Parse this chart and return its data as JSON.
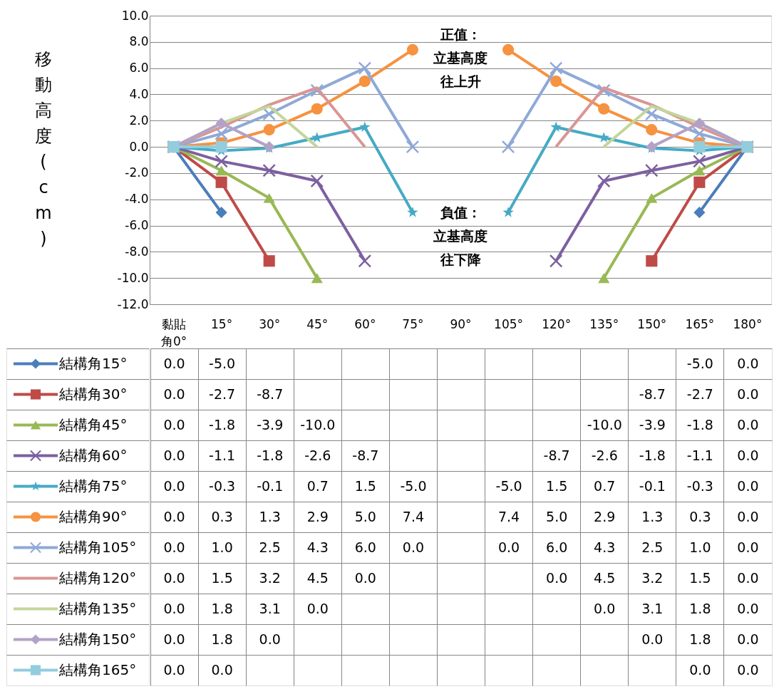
{
  "chart_data": {
    "type": "line",
    "ylabel": "移動高度(cm)",
    "categories": [
      "黏貼角0°",
      "15°",
      "30°",
      "45°",
      "60°",
      "75°",
      "90°",
      "105°",
      "120°",
      "135°",
      "150°",
      "165°",
      "180°"
    ],
    "ylim": [
      -12,
      10
    ],
    "yticks": [
      {
        "value": -12,
        "label": "-12.0"
      },
      {
        "value": -10,
        "label": "-10.0"
      },
      {
        "value": -8,
        "label": "-8.0"
      },
      {
        "value": -6,
        "label": "-6.0"
      },
      {
        "value": -4,
        "label": "-4.0"
      },
      {
        "value": -2,
        "label": "-2.0"
      },
      {
        "value": 0,
        "label": "0.0"
      },
      {
        "value": 2,
        "label": "2.0"
      },
      {
        "value": 4,
        "label": "4.0"
      },
      {
        "value": 6,
        "label": "6.0"
      },
      {
        "value": 8,
        "label": "8.0"
      },
      {
        "value": 10,
        "label": "10.0"
      }
    ],
    "grid": "y",
    "legend": "bottom",
    "annotations": [
      "正值：立基高度往上升",
      "負值：立基高度往下降"
    ],
    "series": [
      {
        "name": "結構角15°",
        "color": "#4a7ebb",
        "marker": "diamond",
        "values": [
          0.0,
          -5.0,
          null,
          null,
          null,
          null,
          null,
          null,
          null,
          null,
          null,
          -5.0,
          0.0
        ],
        "value_labels": [
          "0.0",
          "-5.0",
          null,
          null,
          null,
          null,
          null,
          null,
          null,
          null,
          null,
          "-5.0",
          "0.0"
        ]
      },
      {
        "name": "結構角30°",
        "color": "#be4b48",
        "marker": "square",
        "values": [
          0.0,
          -2.7,
          -8.7,
          null,
          null,
          null,
          null,
          null,
          null,
          null,
          -8.7,
          -2.7,
          0.0
        ],
        "value_labels": [
          "0.0",
          "-2.7",
          "-8.7",
          null,
          null,
          null,
          null,
          null,
          null,
          null,
          "-8.7",
          "-2.7",
          "0.0"
        ]
      },
      {
        "name": "結構角45°",
        "color": "#98b954",
        "marker": "triangle",
        "values": [
          0.0,
          -1.8,
          -3.9,
          -10.0,
          null,
          null,
          null,
          null,
          null,
          -10.0,
          -3.9,
          -1.8,
          0.0
        ],
        "value_labels": [
          "0.0",
          "-1.8",
          "-3.9",
          "-10.0",
          null,
          null,
          null,
          null,
          null,
          "-10.0",
          "-3.9",
          "-1.8",
          "0.0"
        ]
      },
      {
        "name": "結構角60°",
        "color": "#7d60a0",
        "marker": "cross",
        "values": [
          0.0,
          -1.1,
          -1.8,
          -2.6,
          -8.7,
          null,
          null,
          null,
          -8.7,
          -2.6,
          -1.8,
          -1.1,
          0.0
        ],
        "value_labels": [
          "0.0",
          "-1.1",
          "-1.8",
          "-2.6",
          "-8.7",
          null,
          null,
          null,
          "-8.7",
          "-2.6",
          "-1.8",
          "-1.1",
          "0.0"
        ]
      },
      {
        "name": "結構角75°",
        "color": "#46aac5",
        "marker": "star",
        "values": [
          0.0,
          -0.3,
          -0.1,
          0.7,
          1.5,
          -5.0,
          null,
          -5.0,
          1.5,
          0.7,
          -0.1,
          -0.3,
          0.0
        ],
        "value_labels": [
          "0.0",
          "-0.3",
          "-0.1",
          "0.7",
          "1.5",
          "-5.0",
          null,
          "-5.0",
          "1.5",
          "0.7",
          "-0.1",
          "-0.3",
          "0.0"
        ]
      },
      {
        "name": "結構角90°",
        "color": "#f69240",
        "marker": "circle",
        "values": [
          0.0,
          0.3,
          1.3,
          2.9,
          5.0,
          7.4,
          null,
          7.4,
          5.0,
          2.9,
          1.3,
          0.3,
          0.0
        ],
        "value_labels": [
          "0.0",
          "0.3",
          "1.3",
          "2.9",
          "5.0",
          "7.4",
          null,
          "7.4",
          "5.0",
          "2.9",
          "1.3",
          "0.3",
          "0.0"
        ]
      },
      {
        "name": "結構角105°",
        "color": "#8fa9d7",
        "marker": "cross",
        "values": [
          0.0,
          1.0,
          2.5,
          4.3,
          6.0,
          0.0,
          null,
          0.0,
          6.0,
          4.3,
          2.5,
          1.0,
          0.0
        ],
        "value_labels": [
          "0.0",
          "1.0",
          "2.5",
          "4.3",
          "6.0",
          "0.0",
          null,
          "0.0",
          "6.0",
          "4.3",
          "2.5",
          "1.0",
          "0.0"
        ]
      },
      {
        "name": "結構角120°",
        "color": "#d99694",
        "marker": "none",
        "values": [
          0.0,
          1.5,
          3.2,
          4.5,
          0.0,
          null,
          null,
          null,
          0.0,
          4.5,
          3.2,
          1.5,
          0.0
        ],
        "value_labels": [
          "0.0",
          "1.5",
          "3.2",
          "4.5",
          "0.0",
          null,
          null,
          null,
          "0.0",
          "4.5",
          "3.2",
          "1.5",
          "0.0"
        ]
      },
      {
        "name": "結構角135°",
        "color": "#c3d69b",
        "marker": "none",
        "values": [
          0.0,
          1.8,
          3.1,
          0.0,
          null,
          null,
          null,
          null,
          null,
          0.0,
          3.1,
          1.8,
          0.0
        ],
        "value_labels": [
          "0.0",
          "1.8",
          "3.1",
          "0.0",
          null,
          null,
          null,
          null,
          null,
          "0.0",
          "3.1",
          "1.8",
          "0.0"
        ]
      },
      {
        "name": "結構角150°",
        "color": "#b3a2c7",
        "marker": "diamond",
        "values": [
          0.0,
          1.8,
          0.0,
          null,
          null,
          null,
          null,
          null,
          null,
          null,
          0.0,
          1.8,
          0.0
        ],
        "value_labels": [
          "0.0",
          "1.8",
          "0.0",
          null,
          null,
          null,
          null,
          null,
          null,
          null,
          "0.0",
          "1.8",
          "0.0"
        ]
      },
      {
        "name": "結構角165°",
        "color": "#93cddd",
        "marker": "square",
        "values": [
          0.0,
          0.0,
          null,
          null,
          null,
          null,
          null,
          null,
          null,
          null,
          null,
          0.0,
          0.0
        ],
        "value_labels": [
          "0.0",
          "0.0",
          null,
          null,
          null,
          null,
          null,
          null,
          null,
          null,
          null,
          "0.0",
          "0.0"
        ]
      }
    ]
  }
}
